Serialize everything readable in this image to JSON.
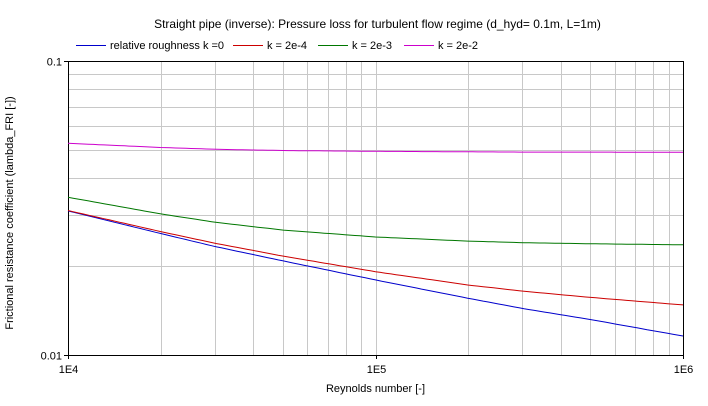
{
  "chart_data": {
    "type": "line",
    "title": "Straight pipe (inverse): Pressure loss for turbulent flow regime (d_hyd= 0.1m, L=1m)",
    "xlabel": "Reynolds number [-]",
    "ylabel": "Frictional resistance coefficient (lambda_FRI [-])",
    "x_scale": "log",
    "y_scale": "log",
    "xlim": [
      10000,
      1000000
    ],
    "ylim": [
      0.01,
      0.1
    ],
    "x_ticks": [
      {
        "value": 10000,
        "label": "1E4"
      },
      {
        "value": 100000,
        "label": "1E5"
      },
      {
        "value": 1000000,
        "label": "1E6"
      }
    ],
    "y_ticks": [
      {
        "value": 0.01,
        "label": "0.01"
      },
      {
        "value": 0.1,
        "label": "0.1"
      }
    ],
    "grid": true,
    "legend_position": "top",
    "series": [
      {
        "name": "relative roughness k =0",
        "color": "#0000cc",
        "x": [
          10000,
          20000,
          30000,
          50000,
          100000,
          200000,
          300000,
          500000,
          1000000
        ],
        "y": [
          0.0309,
          0.0259,
          0.0234,
          0.0209,
          0.018,
          0.0156,
          0.0144,
          0.0132,
          0.0116
        ]
      },
      {
        "name": "k = 2e-4",
        "color": "#cc0000",
        "x": [
          10000,
          20000,
          30000,
          50000,
          100000,
          200000,
          300000,
          500000,
          1000000
        ],
        "y": [
          0.031,
          0.0263,
          0.024,
          0.0217,
          0.0192,
          0.0173,
          0.0165,
          0.0157,
          0.0148
        ]
      },
      {
        "name": "k = 2e-3",
        "color": "#007700",
        "x": [
          10000,
          20000,
          30000,
          50000,
          100000,
          200000,
          300000,
          500000,
          1000000
        ],
        "y": [
          0.0344,
          0.0302,
          0.0283,
          0.0266,
          0.0252,
          0.0244,
          0.0241,
          0.0239,
          0.0237
        ]
      },
      {
        "name": "k = 2e-2",
        "color": "#cc00cc",
        "x": [
          10000,
          20000,
          30000,
          50000,
          100000,
          200000,
          300000,
          500000,
          1000000
        ],
        "y": [
          0.0525,
          0.0508,
          0.0501,
          0.0496,
          0.0493,
          0.0491,
          0.049,
          0.049,
          0.0489
        ]
      }
    ]
  }
}
